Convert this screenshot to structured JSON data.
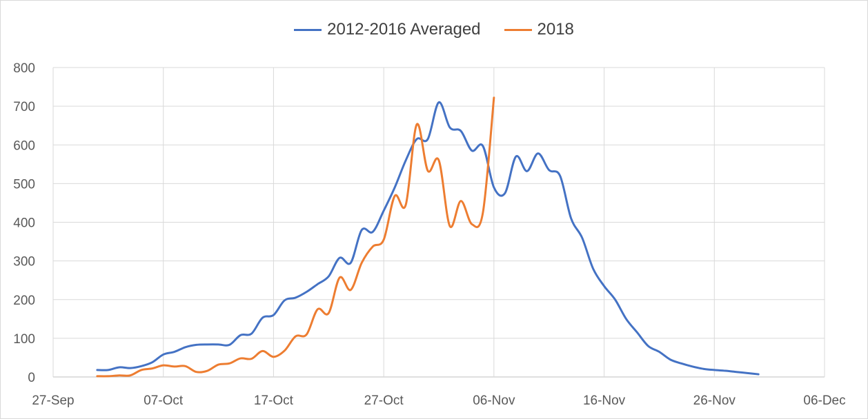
{
  "chart_data": {
    "type": "line",
    "legend_position": "top",
    "grid": true,
    "xlim": [
      "2012-09-27",
      "2012-12-06"
    ],
    "ylim": [
      0,
      800
    ],
    "x_tick_labels": [
      "27-Sep",
      "07-Oct",
      "17-Oct",
      "27-Oct",
      "06-Nov",
      "16-Nov",
      "26-Nov",
      "06-Dec"
    ],
    "y_tick_labels": [
      "0",
      "100",
      "200",
      "300",
      "400",
      "500",
      "600",
      "700",
      "800"
    ],
    "series": [
      {
        "name": "2012-2016 Averaged",
        "color": "#4472c4",
        "x": [
          "2012-10-01",
          "2012-10-02",
          "2012-10-03",
          "2012-10-04",
          "2012-10-05",
          "2012-10-06",
          "2012-10-07",
          "2012-10-08",
          "2012-10-09",
          "2012-10-10",
          "2012-10-11",
          "2012-10-12",
          "2012-10-13",
          "2012-10-14",
          "2012-10-15",
          "2012-10-16",
          "2012-10-17",
          "2012-10-18",
          "2012-10-19",
          "2012-10-20",
          "2012-10-21",
          "2012-10-22",
          "2012-10-23",
          "2012-10-24",
          "2012-10-25",
          "2012-10-26",
          "2012-10-27",
          "2012-10-28",
          "2012-10-29",
          "2012-10-30",
          "2012-10-31",
          "2012-11-01",
          "2012-11-02",
          "2012-11-03",
          "2012-11-04",
          "2012-11-05",
          "2012-11-06",
          "2012-11-07",
          "2012-11-08",
          "2012-11-09",
          "2012-11-10",
          "2012-11-11",
          "2012-11-12",
          "2012-11-13",
          "2012-11-14",
          "2012-11-15",
          "2012-11-16",
          "2012-11-17",
          "2012-11-18",
          "2012-11-19",
          "2012-11-20",
          "2012-11-21",
          "2012-11-22",
          "2012-11-23",
          "2012-11-24",
          "2012-11-25",
          "2012-11-26",
          "2012-11-27",
          "2012-11-28",
          "2012-11-29",
          "2012-11-30"
        ],
        "values": [
          18,
          18,
          25,
          23,
          28,
          38,
          58,
          65,
          77,
          83,
          84,
          84,
          83,
          108,
          112,
          153,
          160,
          198,
          205,
          220,
          240,
          260,
          308,
          295,
          380,
          375,
          430,
          490,
          560,
          615,
          615,
          710,
          645,
          636,
          585,
          597,
          490,
          475,
          570,
          532,
          578,
          535,
          520,
          410,
          360,
          280,
          235,
          200,
          150,
          115,
          80,
          65,
          45,
          35,
          27,
          21,
          18,
          16,
          13,
          10,
          7
        ]
      },
      {
        "name": "2018",
        "color": "#ed7d31",
        "x": [
          "2012-10-01",
          "2012-10-02",
          "2012-10-03",
          "2012-10-04",
          "2012-10-05",
          "2012-10-06",
          "2012-10-07",
          "2012-10-08",
          "2012-10-09",
          "2012-10-10",
          "2012-10-11",
          "2012-10-12",
          "2012-10-13",
          "2012-10-14",
          "2012-10-15",
          "2012-10-16",
          "2012-10-17",
          "2012-10-18",
          "2012-10-19",
          "2012-10-20",
          "2012-10-21",
          "2012-10-22",
          "2012-10-23",
          "2012-10-24",
          "2012-10-25",
          "2012-10-26",
          "2012-10-27",
          "2012-10-28",
          "2012-10-29",
          "2012-10-30",
          "2012-10-31",
          "2012-11-01",
          "2012-11-02",
          "2012-11-03",
          "2012-11-04",
          "2012-11-05",
          "2012-11-06"
        ],
        "values": [
          2,
          2,
          4,
          4,
          18,
          22,
          30,
          27,
          28,
          13,
          16,
          32,
          35,
          48,
          47,
          67,
          52,
          68,
          105,
          110,
          175,
          165,
          257,
          225,
          295,
          337,
          355,
          468,
          445,
          653,
          533,
          560,
          390,
          455,
          395,
          425,
          722
        ]
      }
    ]
  }
}
